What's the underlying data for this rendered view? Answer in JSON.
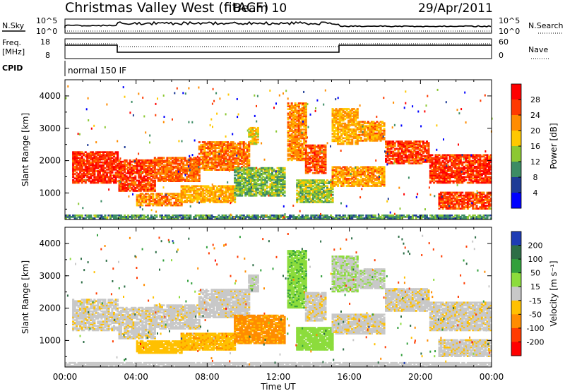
{
  "header": {
    "title": "Christmas Valley West (fitACF)",
    "beam": "Beam 10",
    "date": "29/Apr/2011"
  },
  "strip": {
    "nsky_label": "N.Sky",
    "nsky_ticks": [
      "10^5",
      "10^0"
    ],
    "nsearch_label": "N.Search",
    "nsearch_ticks": [
      "10^5",
      "10^0"
    ],
    "freq_label": "Freq.",
    "freq_unit": "[MHz]",
    "freq_ticks": [
      "18",
      "8"
    ],
    "nave_label": "Nave",
    "nave_ticks": [
      "60",
      "0"
    ],
    "cpid_label": "CPID",
    "cpid_value": "normal 150 IF"
  },
  "chart_data": [
    {
      "type": "heatmap",
      "name_key": "power",
      "ylabel": "Slant Range [km]",
      "xlabel": "",
      "x_ticks": [],
      "y_ticks": [
        "4000",
        "3000",
        "2000",
        "1000"
      ],
      "y_values": [
        4000,
        3000,
        2000,
        1000
      ],
      "ylim": [
        180,
        4500
      ],
      "xlim": [
        0,
        24
      ],
      "colorbar": {
        "label": "Power [dB]",
        "ticks": [
          "28",
          "24",
          "20",
          "16",
          "12",
          "8",
          "4"
        ],
        "colors": [
          "#ff0000",
          "#ff3a00",
          "#ff8c00",
          "#ffc800",
          "#8cc832",
          "#3c8c64",
          "#1e3c96",
          "#0000ff"
        ]
      }
    },
    {
      "type": "heatmap",
      "name_key": "velocity",
      "ylabel": "Slant Range [km]",
      "xlabel": "Time UT",
      "x_ticks": [
        "00:00",
        "04:00",
        "08:00",
        "12:00",
        "16:00",
        "20:00",
        "00:00"
      ],
      "x_values": [
        0,
        4,
        8,
        12,
        16,
        20,
        24
      ],
      "y_ticks": [
        "4000",
        "3000",
        "2000",
        "1000"
      ],
      "y_values": [
        4000,
        3000,
        2000,
        1000
      ],
      "ylim": [
        180,
        4500
      ],
      "xlim": [
        0,
        24
      ],
      "colorbar": {
        "label": "Velocity [m s⁻¹]",
        "ticks": [
          "200",
          "100",
          "50",
          "15",
          "-15",
          "-50",
          "-100",
          "-200"
        ],
        "colors": [
          "#1e3cb4",
          "#2d6e46",
          "#32a03c",
          "#8cdc3c",
          "#c8c8c8",
          "#ffc000",
          "#ff8c00",
          "#ff3c00",
          "#ff0000"
        ]
      }
    }
  ],
  "echo_regions": [
    {
      "t0": 0.4,
      "t1": 3.0,
      "r0": 1300,
      "r1": 2250,
      "p": 27,
      "v": -5
    },
    {
      "t0": 3.0,
      "t1": 5.0,
      "r0": 1050,
      "r1": 2000,
      "p": 26,
      "v": -5
    },
    {
      "t0": 5.0,
      "t1": 7.5,
      "r0": 1350,
      "r1": 2100,
      "p": 24,
      "v": -3
    },
    {
      "t0": 7.5,
      "t1": 10.3,
      "r0": 1700,
      "r1": 2600,
      "p": 23,
      "v": -2
    },
    {
      "t0": 10.3,
      "t1": 10.8,
      "r0": 2500,
      "r1": 3000,
      "p": 18,
      "v": 5
    },
    {
      "t0": 4.0,
      "t1": 6.5,
      "r0": 600,
      "r1": 1000,
      "p": 22,
      "v": -35
    },
    {
      "t0": 6.5,
      "t1": 9.5,
      "r0": 700,
      "r1": 1200,
      "p": 20,
      "v": -40
    },
    {
      "t0": 9.5,
      "t1": 12.3,
      "r0": 900,
      "r1": 1800,
      "p": 13,
      "v": -60
    },
    {
      "t0": 12.5,
      "t1": 13.5,
      "r0": 2000,
      "r1": 3800,
      "p": 22,
      "v": 40
    },
    {
      "t0": 13.5,
      "t1": 14.6,
      "r0": 1600,
      "r1": 2500,
      "p": 25,
      "v": -5
    },
    {
      "t0": 13.0,
      "t1": 15.0,
      "r0": 700,
      "r1": 1400,
      "p": 14,
      "v": 30
    },
    {
      "t0": 15.0,
      "t1": 16.5,
      "r0": 2500,
      "r1": 3600,
      "p": 20,
      "v": 10
    },
    {
      "t0": 15.0,
      "t1": 18.0,
      "r0": 1200,
      "r1": 1800,
      "p": 21,
      "v": -5
    },
    {
      "t0": 16.5,
      "t1": 18.0,
      "r0": 2600,
      "r1": 3200,
      "p": 21,
      "v": 5
    },
    {
      "t0": 18.0,
      "t1": 20.5,
      "r0": 1900,
      "r1": 2600,
      "p": 26,
      "v": -5
    },
    {
      "t0": 20.5,
      "t1": 24.0,
      "r0": 1300,
      "r1": 2200,
      "p": 27,
      "v": -5
    },
    {
      "t0": 21.0,
      "t1": 24.0,
      "r0": 500,
      "r1": 1000,
      "p": 26,
      "v": -5
    },
    {
      "t0": 0.0,
      "t1": 24.0,
      "r0": 200,
      "r1": 320,
      "p": 10,
      "v": 0
    }
  ]
}
